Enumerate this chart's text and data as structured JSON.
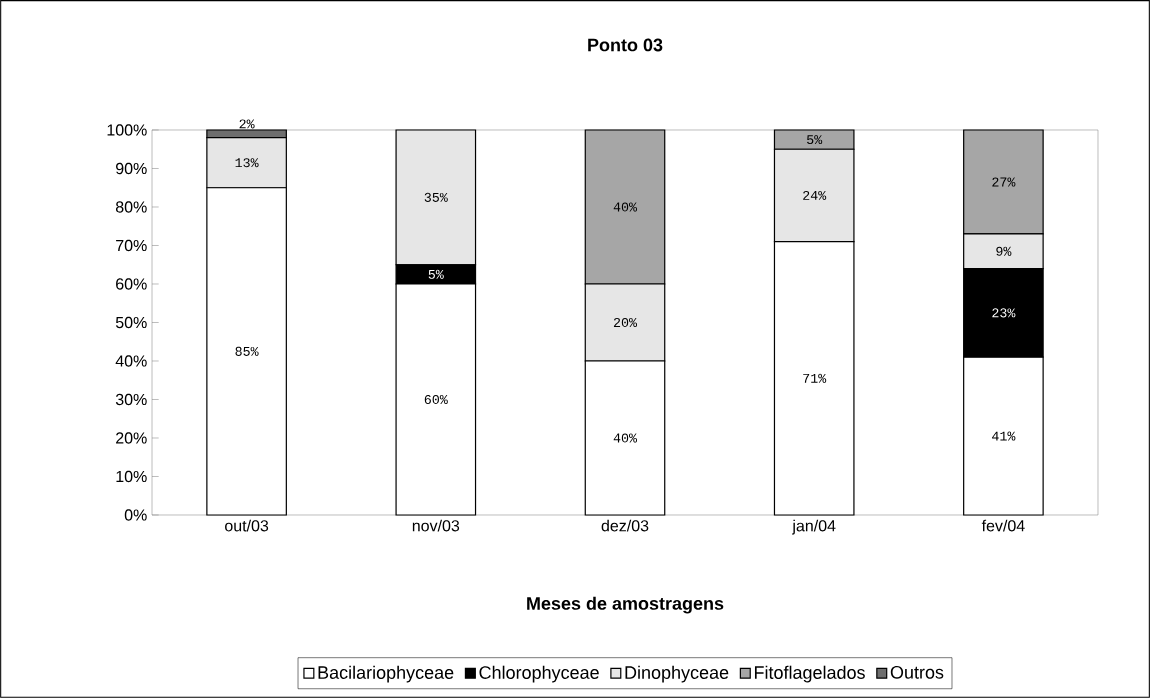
{
  "chart_data": {
    "type": "bar",
    "stacked": true,
    "title": "Ponto 03",
    "xlabel": "Meses de amostragens",
    "categories": [
      "out/03",
      "nov/03",
      "dez/03",
      "jan/04",
      "fev/04"
    ],
    "series": [
      {
        "name": "Bacilariophyceae",
        "color": "#ffffff",
        "values": [
          85,
          60,
          40,
          71,
          41
        ],
        "value_labels": [
          "85%",
          "60%",
          "40%",
          "71%",
          "41%"
        ]
      },
      {
        "name": "Chlorophyceae",
        "color": "#000000",
        "values": [
          0,
          5,
          0,
          0,
          23
        ],
        "value_labels": [
          null,
          "5%",
          null,
          null,
          "23%"
        ]
      },
      {
        "name": "Dinophyceae",
        "color": "#e6e6e6",
        "values": [
          13,
          35,
          20,
          24,
          9
        ],
        "value_labels": [
          "13%",
          "35%",
          "20%",
          "24%",
          "9%"
        ]
      },
      {
        "name": "Fitoflagelados",
        "color": "#a6a6a6",
        "values": [
          0,
          0,
          40,
          5,
          27
        ],
        "value_labels": [
          null,
          null,
          "40%",
          "5%",
          "27%"
        ]
      },
      {
        "name": "Outros",
        "color": "#6e6e6e",
        "values": [
          2,
          0,
          0,
          0,
          0
        ],
        "value_labels": [
          "2%",
          null,
          null,
          null,
          null
        ]
      }
    ],
    "ylim": [
      0,
      100
    ],
    "yticks": [
      {
        "value": 0,
        "label": "0%"
      },
      {
        "value": 10,
        "label": "10%"
      },
      {
        "value": 20,
        "label": "20%"
      },
      {
        "value": 30,
        "label": "30%"
      },
      {
        "value": 40,
        "label": "40%"
      },
      {
        "value": 50,
        "label": "50%"
      },
      {
        "value": 60,
        "label": "60%"
      },
      {
        "value": 70,
        "label": "70%"
      },
      {
        "value": 80,
        "label": "80%"
      },
      {
        "value": 90,
        "label": "90%"
      },
      {
        "value": 100,
        "label": "100%"
      }
    ],
    "grid": false,
    "legend": "bottom"
  }
}
